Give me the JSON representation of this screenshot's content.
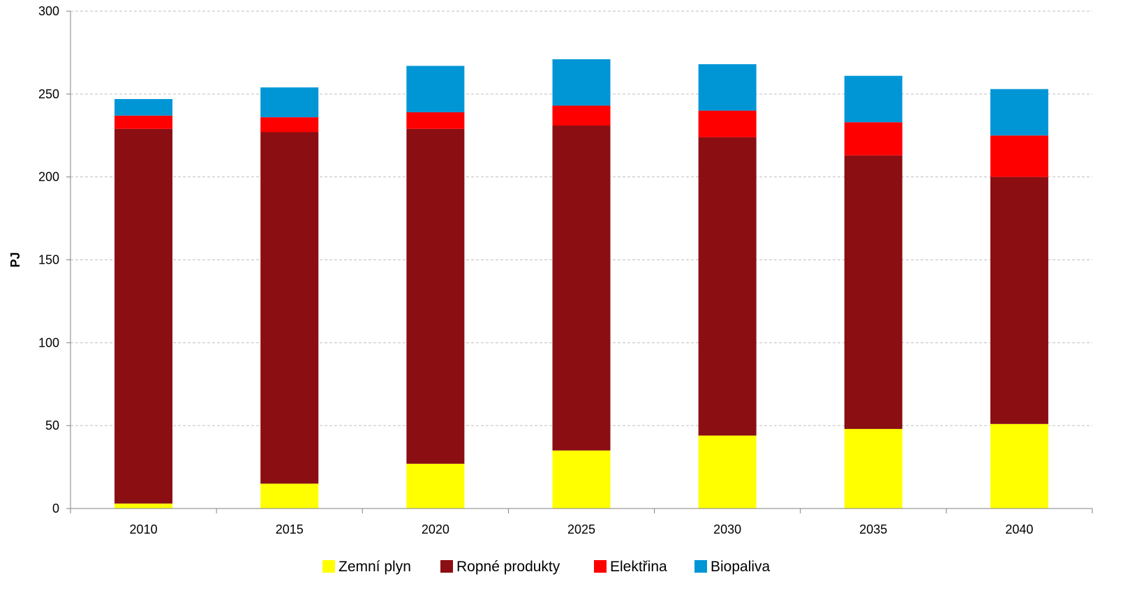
{
  "chart_data": {
    "type": "bar",
    "stacked": true,
    "categories": [
      "2010",
      "2015",
      "2020",
      "2025",
      "2030",
      "2035",
      "2040"
    ],
    "series": [
      {
        "name": "Zemní plyn",
        "color": "#FFFF00",
        "values": [
          3,
          15,
          27,
          35,
          44,
          48,
          51
        ]
      },
      {
        "name": "Ropné produkty",
        "color": "#8B0E13",
        "values": [
          226,
          212,
          202,
          196,
          180,
          165,
          149
        ]
      },
      {
        "name": "Elektřina",
        "color": "#FF0000",
        "values": [
          8,
          9,
          10,
          12,
          16,
          20,
          25
        ]
      },
      {
        "name": "Biopaliva",
        "color": "#0096D6",
        "values": [
          10,
          18,
          28,
          28,
          28,
          28,
          28
        ]
      }
    ],
    "title": "",
    "xlabel": "",
    "ylabel": "PJ",
    "ylim": [
      0,
      300
    ],
    "yticks": [
      "0",
      "50",
      "100",
      "150",
      "200",
      "250",
      "300"
    ],
    "grid": true,
    "legend_position": "bottom"
  }
}
